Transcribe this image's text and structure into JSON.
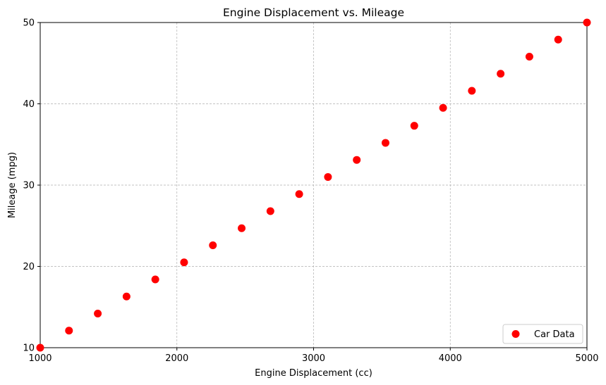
{
  "chart_data": {
    "type": "scatter",
    "title": "Engine Displacement vs. Mileage",
    "xlabel": "Engine Displacement (cc)",
    "ylabel": "Mileage (mpg)",
    "xlim": [
      1000,
      5000
    ],
    "ylim": [
      10,
      50
    ],
    "xticks": [
      "1000",
      "2000",
      "3000",
      "4000",
      "5000"
    ],
    "yticks": [
      "10",
      "20",
      "30",
      "40",
      "50"
    ],
    "grid": true,
    "legend_position": "lower-right",
    "marker_color": "#ff0000",
    "series": [
      {
        "name": "Car Data",
        "x": [
          1000,
          1210.5,
          1421.1,
          1631.6,
          1842.1,
          2052.6,
          2263.2,
          2473.7,
          2684.2,
          2894.7,
          3105.3,
          3315.8,
          3526.3,
          3736.8,
          3947.4,
          4157.9,
          4368.4,
          4578.9,
          4789.5,
          5000
        ],
        "y": [
          10.0,
          12.1,
          14.2,
          16.3,
          18.4,
          20.5,
          22.6,
          24.7,
          26.8,
          28.9,
          31.0,
          33.1,
          35.2,
          37.3,
          39.5,
          41.6,
          43.7,
          45.8,
          47.9,
          50.0
        ]
      }
    ]
  }
}
